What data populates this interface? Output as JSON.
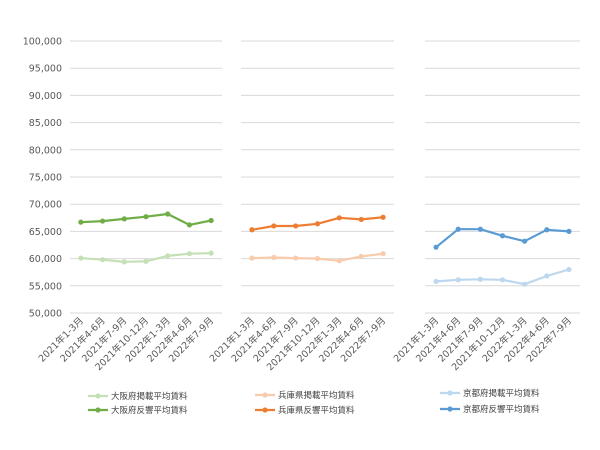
{
  "chart_data": {
    "type": "line",
    "ylim": [
      50000,
      100000
    ],
    "ytick_step": 5000,
    "yticks": [
      "100,000",
      "95,000",
      "90,000",
      "85,000",
      "80,000",
      "75,000",
      "70,000",
      "65,000",
      "60,000",
      "55,000",
      "50,000"
    ],
    "grid": true,
    "legend_position": "bottom",
    "panels": [
      {
        "categories": [
          "2021年1-3月",
          "2021年4-6月",
          "2021年7-9月",
          "2021年10-12月",
          "2022年1-3月",
          "2022年4-6月",
          "2022年7-9月"
        ],
        "series": [
          {
            "name": "大阪府掲載平均賃料",
            "color": "#c5e0b4",
            "values": [
              60100,
              59800,
              59400,
              59500,
              60500,
              60900,
              61000
            ]
          },
          {
            "name": "大阪府反響平均賃料",
            "color": "#70ad47",
            "values": [
              66700,
              66900,
              67300,
              67700,
              68200,
              66200,
              67000
            ]
          }
        ]
      },
      {
        "categories": [
          "2021年1-3月",
          "2021年4-6月",
          "2021年7-9月",
          "2021年10-12月",
          "2022年1-3月",
          "2022年4-6月",
          "2022年7-9月"
        ],
        "series": [
          {
            "name": "兵庫県掲載平均賃料",
            "color": "#f8cbad",
            "values": [
              60100,
              60200,
              60100,
              60000,
              59600,
              60400,
              60900
            ]
          },
          {
            "name": "兵庫県反響平均賃料",
            "color": "#ed7d31",
            "values": [
              65300,
              66000,
              66000,
              66400,
              67500,
              67200,
              67600
            ]
          }
        ]
      },
      {
        "categories": [
          "2021年1-3月",
          "2021年4-6月",
          "2021年7-9月",
          "2021年10-12月",
          "2022年1-3月",
          "2022年4-6月",
          "2022年7-9月"
        ],
        "series": [
          {
            "name": "京都府掲載平均賃料",
            "color": "#bdd7ee",
            "values": [
              55800,
              56100,
              56200,
              56100,
              55300,
              56800,
              58000
            ]
          },
          {
            "name": "京都府反響平均賃料",
            "color": "#5b9bd5",
            "values": [
              62100,
              65400,
              65400,
              64200,
              63200,
              65300,
              65000
            ]
          }
        ]
      }
    ]
  }
}
